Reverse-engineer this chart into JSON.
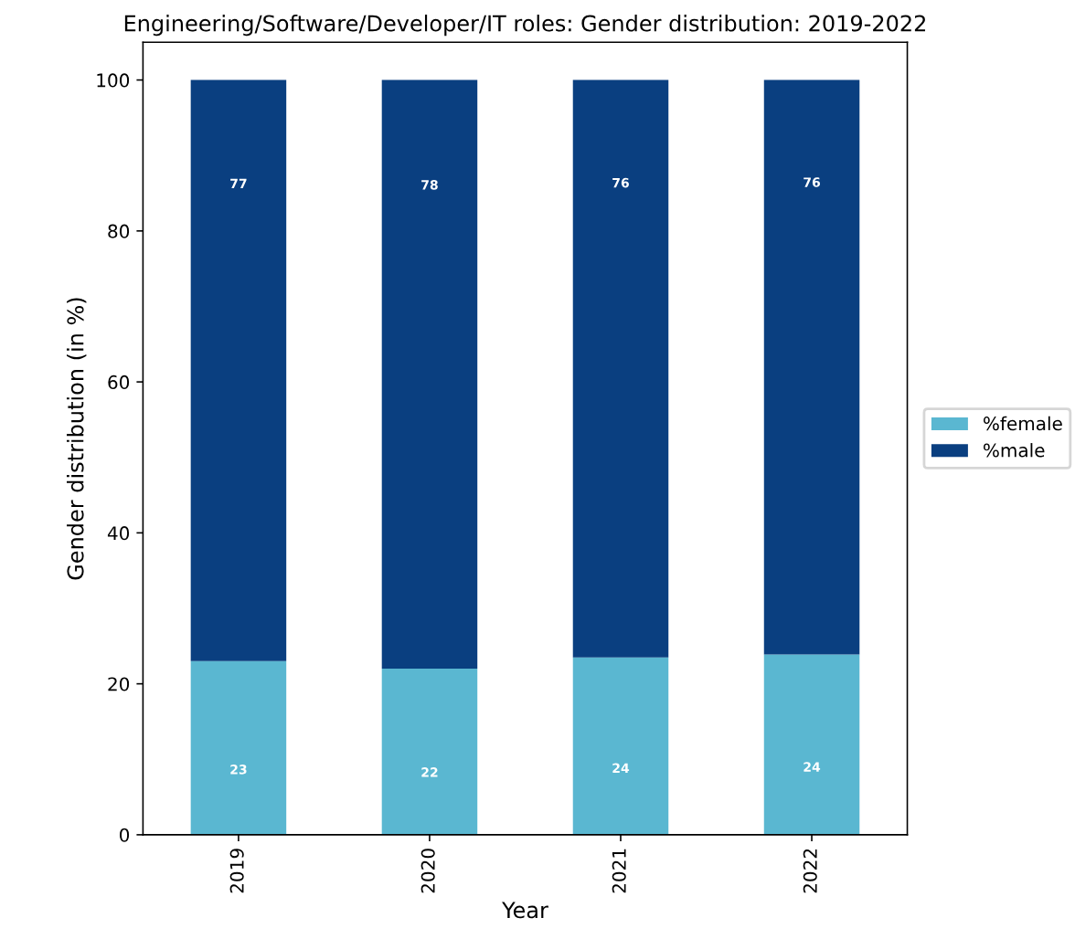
{
  "chart_data": {
    "type": "bar",
    "stacked": true,
    "title": "Engineering/Software/Developer/IT roles: Gender distribution: 2019-2022",
    "xlabel": "Year",
    "ylabel": "Gender distribution (in %)",
    "categories": [
      "2019",
      "2020",
      "2021",
      "2022"
    ],
    "series": [
      {
        "name": "%female",
        "color": "#5ab7d1",
        "values": [
          23,
          22,
          23.5,
          23.9
        ],
        "value_labels": [
          "23",
          "22",
          "24",
          "24"
        ]
      },
      {
        "name": "%male",
        "color": "#0a3f80",
        "values": [
          77,
          78,
          76.5,
          76.1
        ],
        "value_labels": [
          "77",
          "78",
          "76",
          "76"
        ]
      }
    ],
    "ylim": [
      0,
      105
    ],
    "yticks": [
      0,
      20,
      40,
      60,
      80,
      100
    ],
    "legend": "right"
  }
}
